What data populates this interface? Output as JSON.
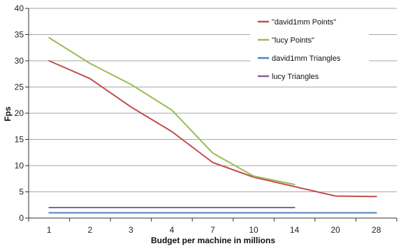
{
  "chart_data": {
    "type": "line",
    "categories": [
      "1",
      "2",
      "3",
      "4",
      "7",
      "10",
      "14",
      "20",
      "28"
    ],
    "xlabel": "Budget per machine in millions",
    "ylabel": "Fps",
    "ylim": [
      0,
      40
    ],
    "yticks": [
      0,
      5,
      10,
      15,
      20,
      25,
      30,
      35,
      40
    ],
    "grid": true,
    "legend_position": "top-right",
    "series": [
      {
        "name": "\"david1mm Points\"",
        "color": "#c0504d",
        "values": [
          30,
          26.6,
          21.2,
          16.5,
          10.6,
          7.8,
          6.0,
          4.2,
          4.1
        ]
      },
      {
        "name": "\"lucy Points\"",
        "color": "#9bbb59",
        "values": [
          34.4,
          29.5,
          25.5,
          20.6,
          12.4,
          8.0,
          6.4,
          null,
          null
        ]
      },
      {
        "name": "david1mm Triangles",
        "color": "#4f81bd",
        "values": [
          1,
          1,
          1,
          1,
          1,
          1,
          1,
          1,
          1
        ]
      },
      {
        "name": "lucy Triangles",
        "color": "#8064a2",
        "values": [
          2,
          2,
          2,
          2,
          2,
          2,
          2,
          null,
          null
        ]
      }
    ]
  }
}
